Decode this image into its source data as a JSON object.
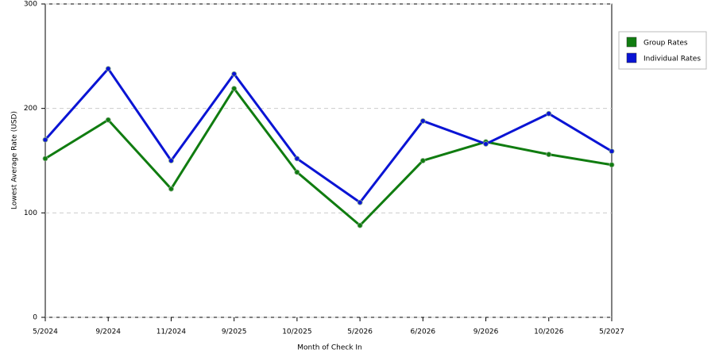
{
  "chart_data": {
    "type": "line",
    "x_label": "Month of Check In",
    "y_label": "Lowest Average Rate (USD)",
    "categories": [
      "5/2024",
      "9/2024",
      "11/2024",
      "9/2025",
      "10/2025",
      "5/2026",
      "6/2026",
      "9/2026",
      "10/2026",
      "5/2027"
    ],
    "series": [
      {
        "name": "Group Rates",
        "color": "#107c10",
        "values": [
          152,
          189,
          123,
          219,
          139,
          88,
          150,
          168,
          156,
          146
        ]
      },
      {
        "name": "Individual Rates",
        "color": "#0a14d4",
        "values": [
          170,
          238,
          150,
          233,
          152,
          110,
          188,
          166,
          195,
          159
        ]
      }
    ],
    "ylim": [
      0,
      300
    ],
    "yticks": [
      0,
      100,
      200,
      300
    ],
    "grid": true,
    "legend": "right"
  }
}
